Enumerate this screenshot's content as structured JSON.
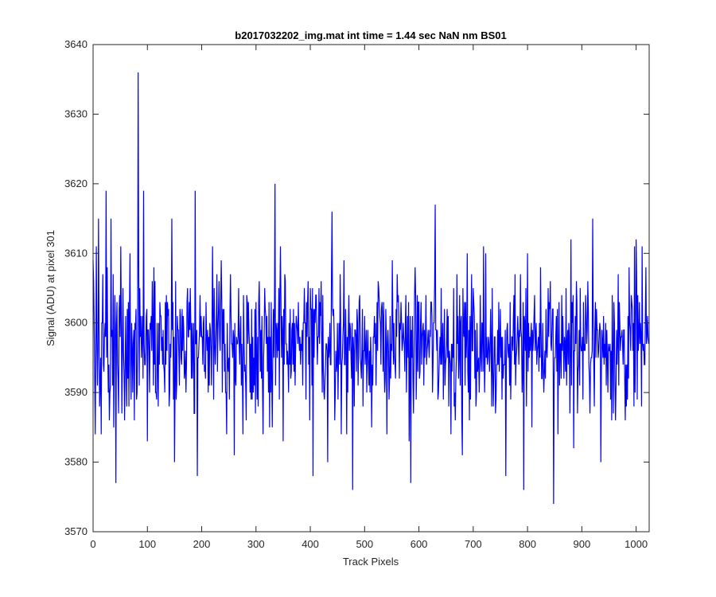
{
  "chart_data": {
    "type": "line",
    "title": "b2017032202_img.mat int time = 1.44 sec  NaN nm BS01",
    "xlabel": "Track Pixels",
    "ylabel": "Signal (ADU) at pixel 301",
    "xlim": [
      0,
      1024
    ],
    "ylim": [
      3570,
      3640
    ],
    "xticks": [
      "0",
      "100",
      "200",
      "300",
      "400",
      "500",
      "600",
      "700",
      "800",
      "900",
      "1000"
    ],
    "yticks": [
      "3570",
      "3580",
      "3590",
      "3600",
      "3610",
      "3620",
      "3630",
      "3640"
    ],
    "grid": false,
    "line_color": "#0000ff",
    "series_length": 1024,
    "series_points_x": [
      0,
      2,
      4,
      6,
      8,
      10,
      12,
      15,
      18,
      20,
      24,
      28,
      30,
      33,
      36,
      42,
      44,
      46,
      50,
      55,
      62,
      68,
      72,
      80,
      83,
      86,
      90,
      93,
      100,
      105,
      112,
      130,
      145,
      150,
      160,
      175,
      188,
      192,
      197,
      210,
      230,
      260,
      285,
      300,
      320,
      335,
      350,
      380,
      405,
      420,
      432,
      440,
      450,
      478,
      500,
      540,
      585,
      600,
      620,
      630,
      650,
      680,
      700,
      720,
      760,
      780,
      793,
      800,
      820,
      848,
      880,
      900,
      920,
      935,
      960,
      980,
      1000,
      1010,
      1018,
      1024
    ],
    "series_points_y": [
      3609,
      3600,
      3584,
      3611,
      3591,
      3615,
      3588,
      3584,
      3607,
      3593,
      3619,
      3590,
      3586,
      3615,
      3591,
      3577,
      3603,
      3592,
      3598,
      3605,
      3588,
      3610,
      3597,
      3589,
      3636,
      3605,
      3598,
      3619,
      3583,
      3600,
      3608,
      3594,
      3615,
      3580,
      3602,
      3598,
      3619,
      3578,
      3604,
      3596,
      3599,
      3581,
      3597,
      3603,
      3601,
      3620,
      3583,
      3596,
      3578,
      3606,
      3580,
      3616,
      3600,
      3576,
      3601,
      3598,
      3577,
      3603,
      3599,
      3617,
      3595,
      3581,
      3605,
      3596,
      3578,
      3596,
      3576,
      3610,
      3598,
      3574,
      3612,
      3596,
      3615,
      3580,
      3600,
      3586,
      3612,
      3588,
      3608,
      3600
    ]
  }
}
